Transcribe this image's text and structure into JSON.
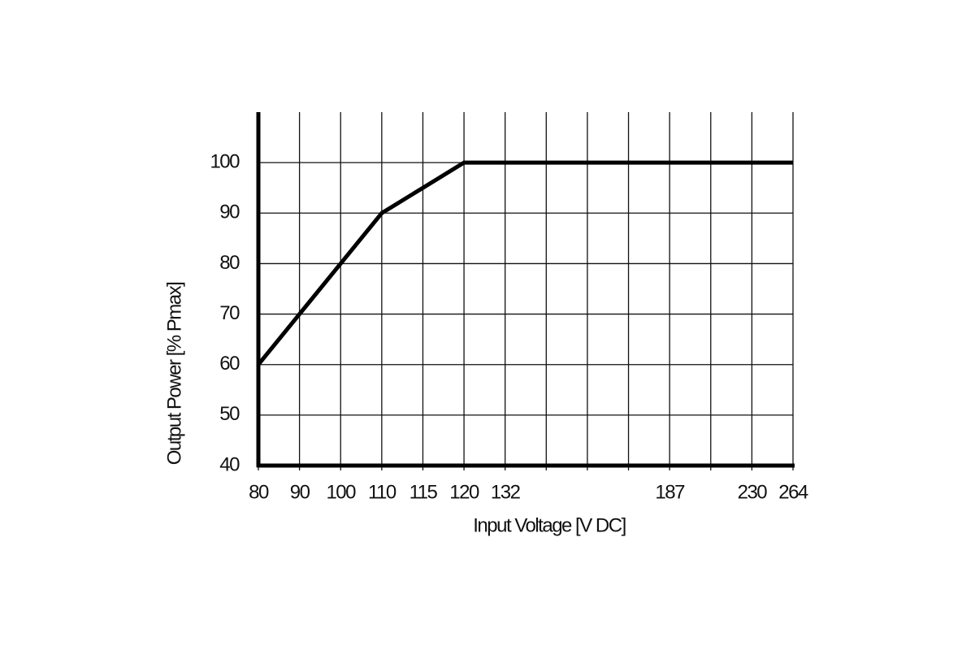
{
  "chart_data": {
    "type": "line",
    "x_label": "Input Voltage [V DC]",
    "y_label": "Output Power [% Pmax]",
    "categories": [
      "80",
      "90",
      "100",
      "110",
      "115",
      "120",
      "132",
      null,
      null,
      null,
      "187",
      null,
      "230",
      "264"
    ],
    "series": [
      {
        "color": "#000000",
        "values": [
          60,
          70,
          80,
          90,
          95,
          100,
          100,
          100,
          100,
          100,
          100,
          100,
          100,
          100
        ]
      }
    ],
    "ylim": [
      40,
      110
    ],
    "yticks": [
      40,
      50,
      60,
      70,
      80,
      90,
      100
    ],
    "grid": true
  }
}
